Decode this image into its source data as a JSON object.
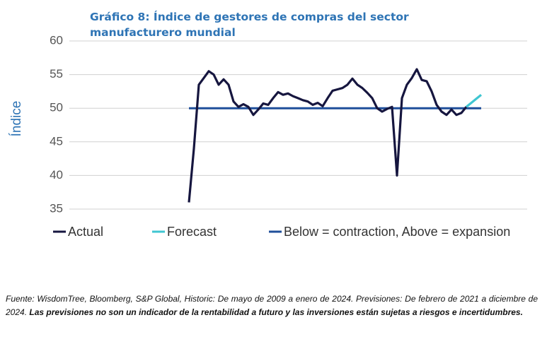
{
  "chart_data": {
    "type": "line",
    "title": "Gráfico 8: Índice de gestores de compras del sector manufacturero mundial",
    "ylabel": "Índice",
    "ylim": [
      35,
      60
    ],
    "yticks": [
      35,
      40,
      45,
      50,
      55,
      60
    ],
    "grid": true,
    "series": [
      {
        "name": "Actual",
        "color": "#16163f",
        "values": [
          36,
          44,
          53.5,
          54.5,
          55.5,
          55,
          53.5,
          54.3,
          53.5,
          51,
          50.2,
          50.6,
          50.2,
          49,
          49.8,
          50.7,
          50.5,
          51.5,
          52.4,
          52,
          52.2,
          51.8,
          51.5,
          51.2,
          51,
          50.5,
          50.8,
          50.3,
          51.5,
          52.6,
          52.8,
          53,
          53.5,
          54.4,
          53.5,
          53,
          52.3,
          51.5,
          50,
          49.5,
          49.9,
          50.2,
          40,
          51.5,
          53.5,
          54.5,
          55.8,
          54.2,
          54,
          52.5,
          50.5,
          49.5,
          49,
          49.8,
          49,
          49.3,
          50.2,
          null,
          null,
          null
        ]
      },
      {
        "name": "Forecast",
        "color": "#3fc6d1",
        "values": [
          null,
          null,
          null,
          null,
          null,
          null,
          null,
          null,
          null,
          null,
          null,
          null,
          null,
          null,
          null,
          null,
          null,
          null,
          null,
          null,
          null,
          null,
          null,
          null,
          null,
          null,
          null,
          null,
          null,
          null,
          null,
          null,
          null,
          null,
          null,
          null,
          null,
          null,
          null,
          null,
          null,
          null,
          null,
          null,
          null,
          null,
          null,
          null,
          null,
          null,
          null,
          null,
          null,
          null,
          null,
          null,
          50.2,
          50.8,
          51.4,
          52
        ]
      },
      {
        "name": "Below = contraction, Above = expansion",
        "color": "#1f4f9a",
        "values": [
          50,
          50,
          50,
          50,
          50,
          50,
          50,
          50,
          50,
          50,
          50,
          50,
          50,
          50,
          50,
          50,
          50,
          50,
          50,
          50,
          50,
          50,
          50,
          50,
          50,
          50,
          50,
          50,
          50,
          50,
          50,
          50,
          50,
          50,
          50,
          50,
          50,
          50,
          50,
          50,
          50,
          50,
          50,
          50,
          50,
          50,
          50,
          50,
          50,
          50,
          50,
          50,
          50,
          50,
          50,
          50,
          50,
          50,
          50,
          50
        ]
      }
    ],
    "source": "Fuente: WisdomTree, Bloomberg, S&P Global, Historic: De mayo de 2009 a enero de 2024. Previsiones: De febrero de 2021 a diciembre de 2024.",
    "disclaimer": "Las previsiones no son un indicador de la rentabilidad a futuro y las inversiones están sujetas a riesgos e incertidumbres."
  }
}
